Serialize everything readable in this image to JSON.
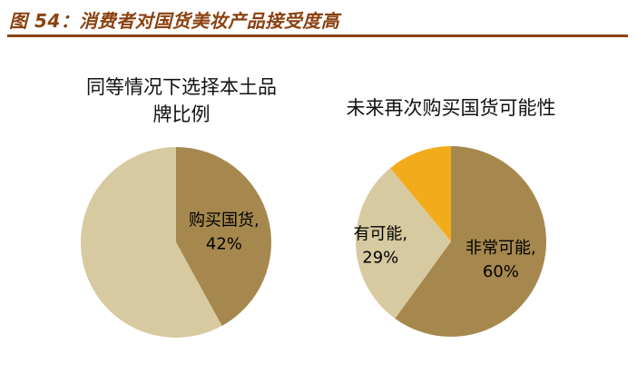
{
  "header": {
    "title": "图 54：消费者对国货美妆产品接受度高",
    "color": "#8B4110",
    "rule_color": "#8B4110"
  },
  "chart_data": [
    {
      "type": "pie",
      "title": "同等情况下选择本土品牌比例",
      "title_lines": [
        "同等情况下选择本土品",
        "牌比例"
      ],
      "unit": "%",
      "start_angle_deg": 0,
      "direction": "clockwise",
      "slices": [
        {
          "label": "购买国货",
          "value": 42,
          "color": "#A6884E",
          "show_label": true,
          "label_r": 0.52
        },
        {
          "label": "",
          "value": 58,
          "color": "#D7CAA0",
          "show_label": false,
          "label_r": 0.55
        }
      ]
    },
    {
      "type": "pie",
      "title": "未来再次购买国货可能性",
      "title_lines": [
        "未来再次购买国货可能性"
      ],
      "unit": "%",
      "start_angle_deg": 0,
      "direction": "clockwise",
      "slices": [
        {
          "label": "非常可能",
          "value": 60,
          "color": "#A6884E",
          "show_label": true,
          "label_r": 0.55
        },
        {
          "label": "有可能",
          "value": 29,
          "color": "#D7CAA0",
          "show_label": true,
          "label_r": 0.74
        },
        {
          "label": "",
          "value": 11,
          "color": "#F2AC1B",
          "show_label": false,
          "label_r": 0.55
        }
      ]
    }
  ]
}
